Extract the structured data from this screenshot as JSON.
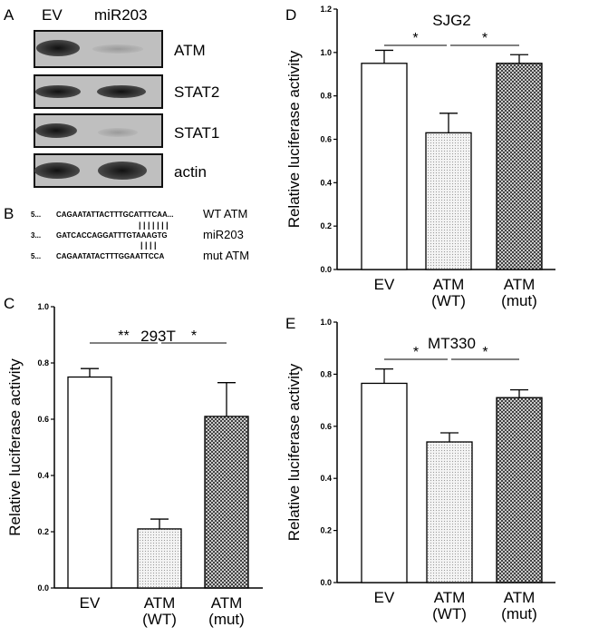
{
  "panel_letters": {
    "a": "A",
    "b": "B",
    "c": "C",
    "d": "D",
    "e": "E"
  },
  "blot": {
    "lanes": [
      "EV",
      "miR203"
    ],
    "bands": [
      "ATM",
      "STAT2",
      "STAT1",
      "actin"
    ]
  },
  "sequences": {
    "rows": [
      {
        "prefix": "5...",
        "seq": "CAGAATATTACTTTGCATTTCAA...",
        "label": "WT ATM"
      },
      {
        "prefix": "3...",
        "seq": "GATCACCAGGATTTGTAAAGTG",
        "label": "miR203"
      },
      {
        "prefix": "5...",
        "seq": "CAGAATATACTTTGGAATTCCA",
        "label": "mut ATM"
      }
    ],
    "pairing_marks_wt": "| | | | | | |",
    "pairing_marks_mut": "|   | | |"
  },
  "colors": {
    "bar_ev": "#ffffff",
    "bar_wt": "#ececec",
    "bar_mut": "#777777"
  },
  "chart_data": [
    {
      "type": "bar",
      "panel": "C",
      "title": "293T",
      "categories": [
        "EV",
        "ATM\n(WT)",
        "ATM\n(mut)"
      ],
      "category_lines": [
        [
          "EV"
        ],
        [
          "ATM",
          "(WT)"
        ],
        [
          "ATM",
          "(mut)"
        ]
      ],
      "values": [
        0.75,
        0.21,
        0.61
      ],
      "errors": [
        0.03,
        0.035,
        0.12
      ],
      "ylabel": "Relative luciferase activity",
      "xlabel": "",
      "ylim": [
        0,
        1.0
      ],
      "yticks": [
        "0.0",
        "0.2",
        "0.4",
        "0.6",
        "0.8",
        "1.0"
      ],
      "significance": [
        {
          "from": 0,
          "to": 1,
          "label": "**"
        },
        {
          "from": 1,
          "to": 2,
          "label": "*"
        }
      ]
    },
    {
      "type": "bar",
      "panel": "D",
      "title": "SJG2",
      "categories": [
        "EV",
        "ATM\n(WT)",
        "ATM\n(mut)"
      ],
      "category_lines": [
        [
          "EV"
        ],
        [
          "ATM",
          "(WT)"
        ],
        [
          "ATM",
          "(mut)"
        ]
      ],
      "values": [
        0.95,
        0.63,
        0.95
      ],
      "errors": [
        0.06,
        0.09,
        0.04
      ],
      "ylabel": "Relative luciferase activity",
      "xlabel": "",
      "ylim": [
        0,
        1.2
      ],
      "yticks": [
        "0.0",
        "0.2",
        "0.4",
        "0.6",
        "0.8",
        "1.0",
        "1.2"
      ],
      "significance": [
        {
          "from": 0,
          "to": 1,
          "label": "*"
        },
        {
          "from": 1,
          "to": 2,
          "label": "*"
        }
      ]
    },
    {
      "type": "bar",
      "panel": "E",
      "title": "MT330",
      "categories": [
        "EV",
        "ATM\n(WT)",
        "ATM\n(mut)"
      ],
      "category_lines": [
        [
          "EV"
        ],
        [
          "ATM",
          "(WT)"
        ],
        [
          "ATM",
          "(mut)"
        ]
      ],
      "values": [
        0.765,
        0.54,
        0.71
      ],
      "errors": [
        0.055,
        0.035,
        0.03
      ],
      "ylabel": "Relative luciferase activity",
      "xlabel": "",
      "ylim": [
        0,
        1.0
      ],
      "yticks": [
        "0.0",
        "0.2",
        "0.4",
        "0.6",
        "0.8",
        "1.0"
      ],
      "significance": [
        {
          "from": 0,
          "to": 1,
          "label": "*"
        },
        {
          "from": 1,
          "to": 2,
          "label": "*"
        }
      ]
    }
  ]
}
